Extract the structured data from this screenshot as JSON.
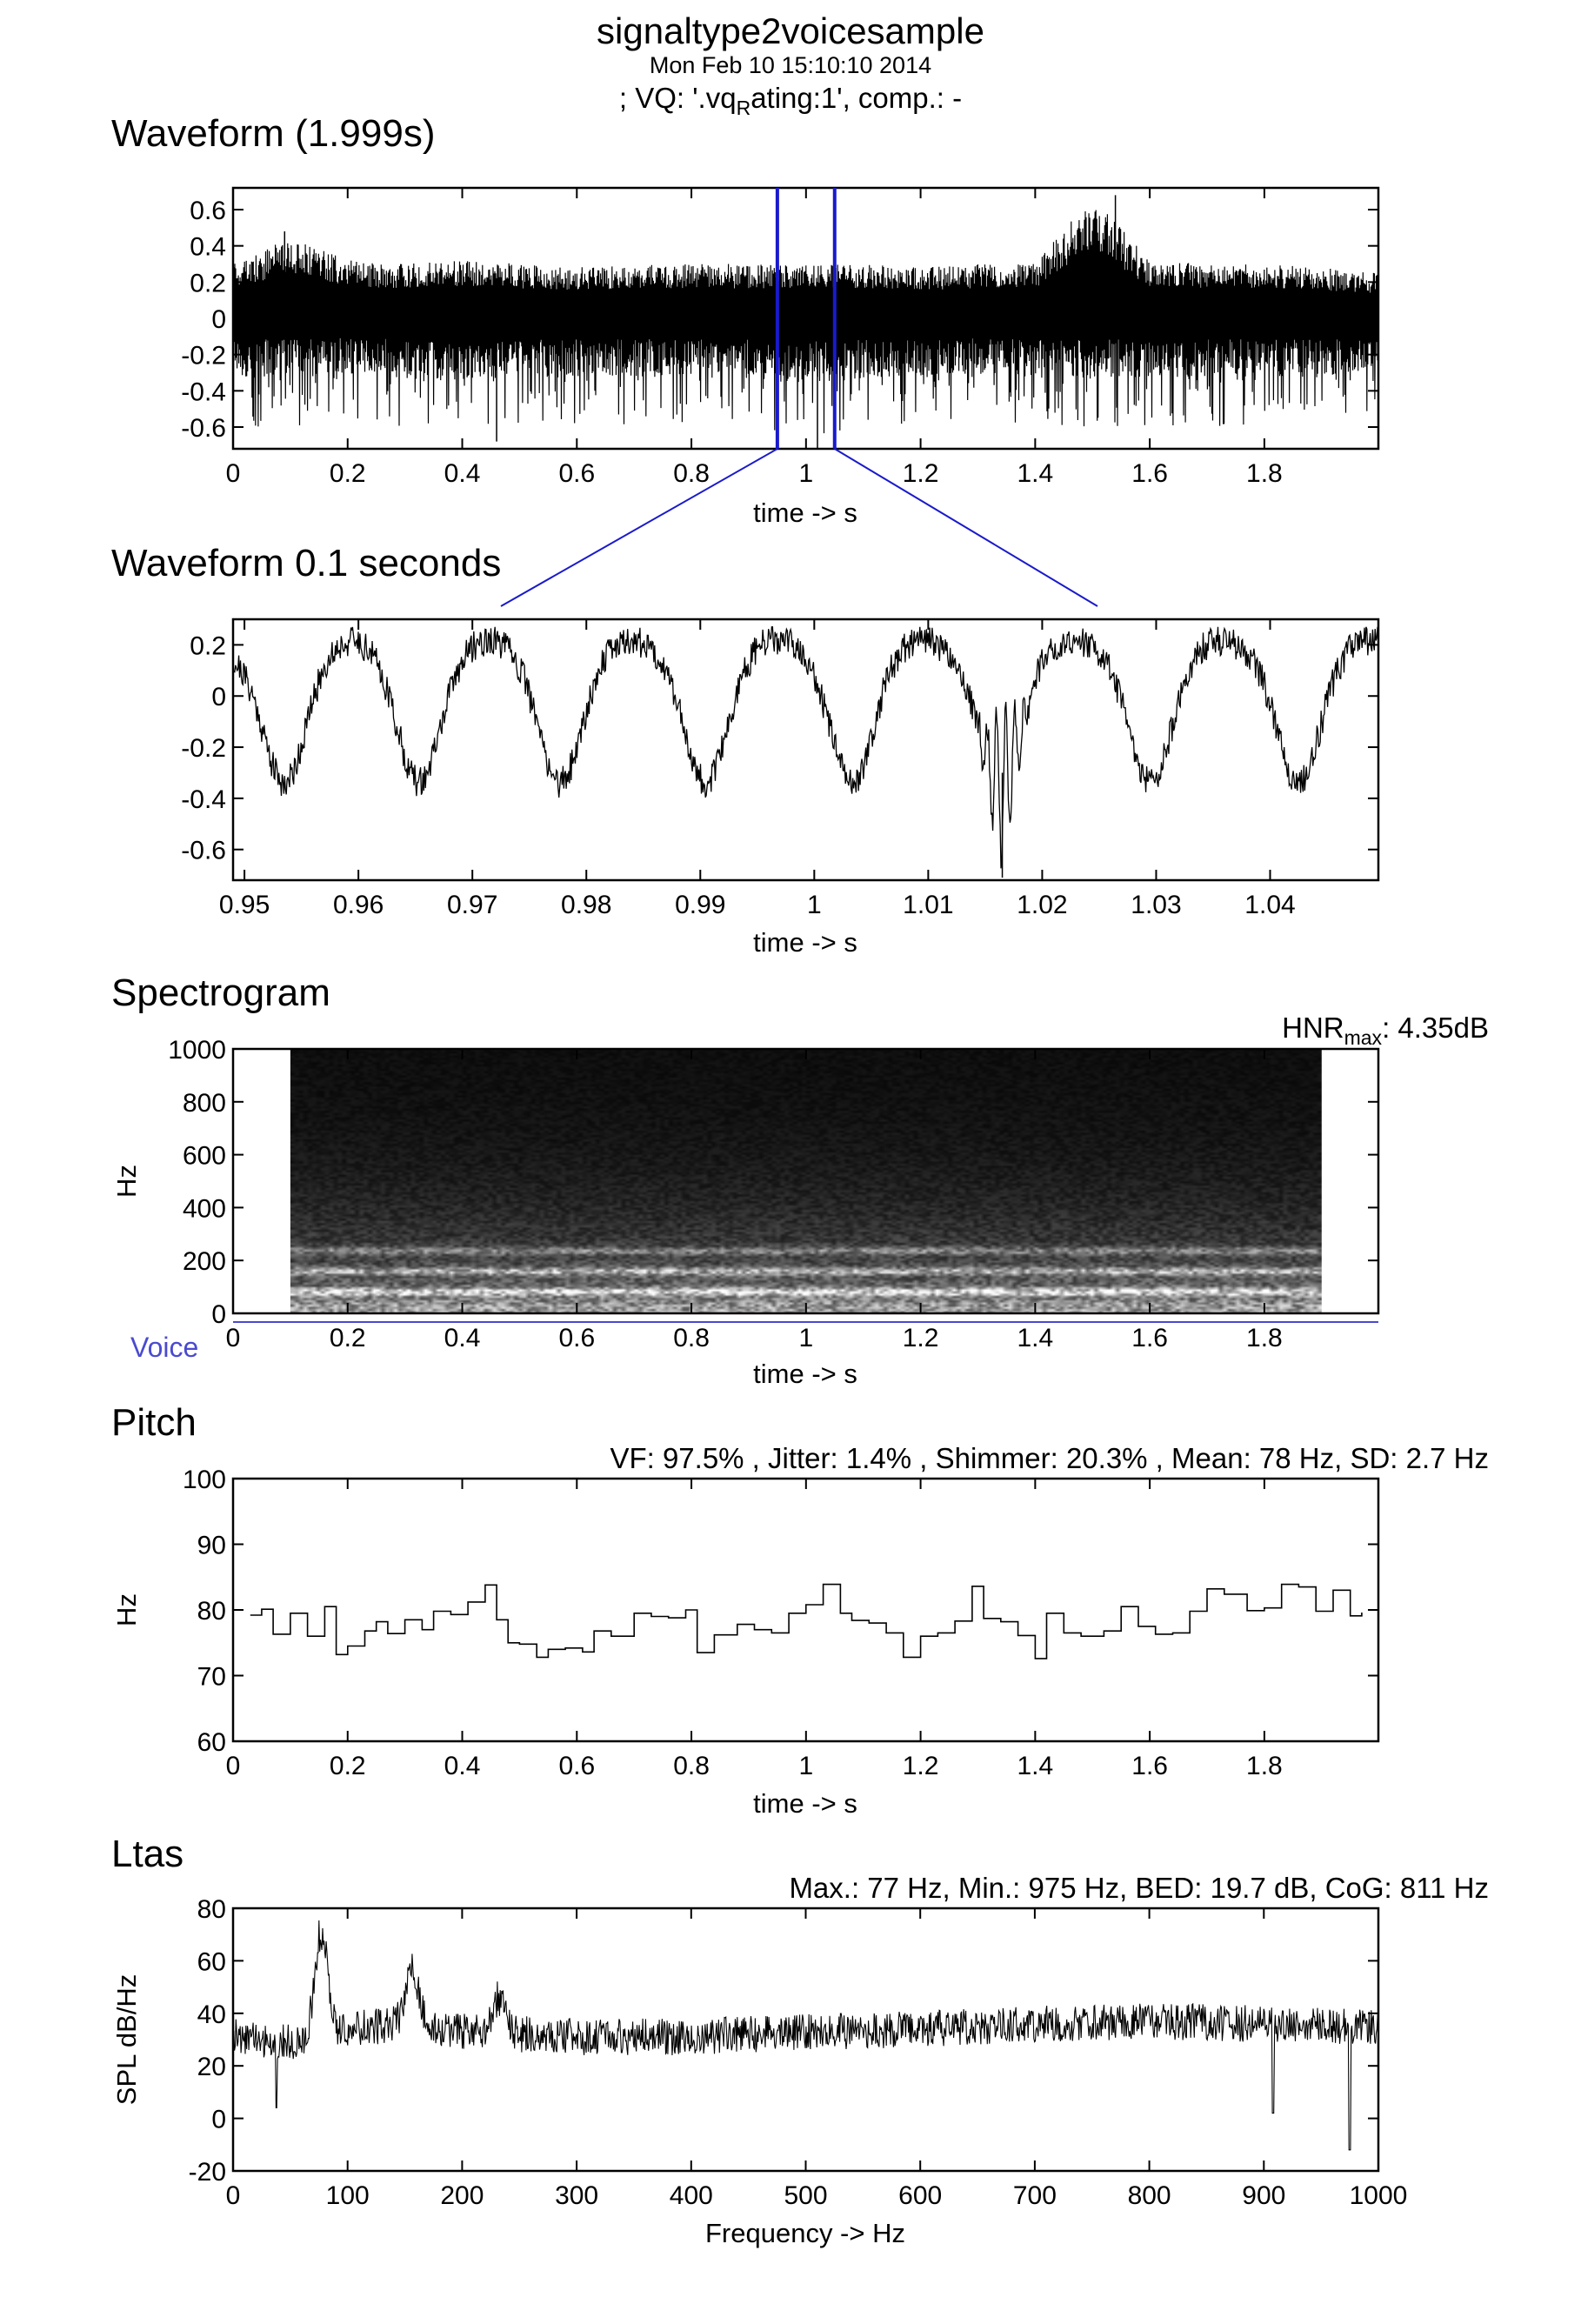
{
  "header": {
    "title": "signaltype2voicesample",
    "date": "Mon Feb 10 15:10:10 2014",
    "vq_prefix": "; VQ: '.vq",
    "vq_sub": "R",
    "vq_suffix": "ating:1', comp.: -"
  },
  "colors": {
    "selection": "#1a1acc",
    "voice": "#4a4ad0",
    "trace": "#000000"
  },
  "chart_data": [
    {
      "id": "waveform",
      "type": "line",
      "title": "Waveform (1.999s)",
      "xlabel": "time -> s",
      "ylabel": "",
      "xlim": [
        0,
        1.999
      ],
      "ylim": [
        -0.72,
        0.72
      ],
      "xticks": [
        0,
        0.2,
        0.4,
        0.6,
        0.8,
        1,
        1.2,
        1.4,
        1.6,
        1.8
      ],
      "xtick_labels": [
        "0",
        "0.2",
        "0.4",
        "0.6",
        "0.8",
        "1",
        "1.2",
        "1.4",
        "1.6",
        "1.8"
      ],
      "yticks": [
        0.6,
        0.4,
        0.2,
        0,
        -0.2,
        -0.4,
        -0.6
      ],
      "ytick_labels": [
        "0.6",
        "0.4",
        "0.2",
        "0",
        "-0.2",
        "-0.4",
        "-0.6"
      ],
      "selection": [
        0.95,
        1.05
      ],
      "envelope": {
        "t": [
          0,
          0.1,
          0.2,
          0.3,
          0.4,
          0.5,
          0.6,
          0.7,
          0.8,
          0.9,
          1.0,
          1.1,
          1.2,
          1.3,
          1.4,
          1.5,
          1.6,
          1.7,
          1.8,
          1.9,
          1.999
        ],
        "max": [
          0.3,
          0.45,
          0.32,
          0.3,
          0.32,
          0.3,
          0.28,
          0.3,
          0.3,
          0.3,
          0.3,
          0.3,
          0.28,
          0.3,
          0.3,
          0.68,
          0.32,
          0.3,
          0.3,
          0.28,
          0.25
        ],
        "min": [
          -0.6,
          -0.6,
          -0.55,
          -0.6,
          -0.65,
          -0.6,
          -0.6,
          -0.6,
          -0.58,
          -0.6,
          -0.65,
          -0.6,
          -0.6,
          -0.55,
          -0.6,
          -0.6,
          -0.6,
          -0.6,
          -0.58,
          -0.6,
          -0.5
        ]
      }
    },
    {
      "id": "waveform-zoom",
      "type": "line",
      "title": "Waveform 0.1 seconds",
      "xlabel": "time -> s",
      "ylabel": "",
      "xlim": [
        0.949,
        1.0495
      ],
      "ylim": [
        -0.72,
        0.3
      ],
      "xticks": [
        0.95,
        0.96,
        0.97,
        0.98,
        0.99,
        1.0,
        1.01,
        1.02,
        1.03,
        1.04
      ],
      "xtick_labels": [
        "0.95",
        "0.96",
        "0.97",
        "0.98",
        "0.99",
        "1",
        "1.01",
        "1.02",
        "1.03",
        "1.04"
      ],
      "yticks": [
        0.2,
        0,
        -0.2,
        -0.4,
        -0.6
      ],
      "ytick_labels": [
        "0.2",
        "0",
        "-0.2",
        "-0.4",
        "-0.6"
      ],
      "glottal_pulse_times": [
        0.9535,
        0.9653,
        0.9777,
        0.9905,
        1.0033,
        1.0163,
        1.0295,
        1.0425
      ],
      "deepest_trough": {
        "t": 1.0165,
        "y": -0.71
      },
      "peak_level": 0.22
    },
    {
      "id": "spectrogram",
      "type": "heatmap",
      "title": "Spectrogram",
      "annotation_prefix": "HNR",
      "annotation_sub": "max",
      "annotation_suffix": ": 4.35dB",
      "xlabel": "time -> s",
      "ylabel": "Hz",
      "xlim": [
        0,
        1.999
      ],
      "ylim": [
        0,
        1000
      ],
      "xticks": [
        0,
        0.2,
        0.4,
        0.6,
        0.8,
        1,
        1.2,
        1.4,
        1.6,
        1.8
      ],
      "xtick_labels": [
        "0",
        "0.2",
        "0.4",
        "0.6",
        "0.8",
        "1",
        "1.2",
        "1.4",
        "1.6",
        "1.8"
      ],
      "yticks": [
        1000,
        800,
        600,
        400,
        200,
        0
      ],
      "ytick_labels": [
        "1000",
        "800",
        "600",
        "400",
        "200",
        "0"
      ],
      "image_time_range": [
        0.1,
        1.9
      ],
      "harmonic_bands_hz": [
        78,
        156,
        234
      ],
      "voice_label": "Voice",
      "voiced_range": [
        0,
        1.999
      ]
    },
    {
      "id": "pitch",
      "type": "line",
      "title": "Pitch",
      "stats": "VF: 97.5% , Jitter: 1.4% , Shimmer: 20.3% , Mean: 78 Hz, SD: 2.7 Hz",
      "xlabel": "time -> s",
      "ylabel": "Hz",
      "xlim": [
        0,
        1.999
      ],
      "ylim": [
        60,
        100
      ],
      "xticks": [
        0,
        0.2,
        0.4,
        0.6,
        0.8,
        1,
        1.2,
        1.4,
        1.6,
        1.8
      ],
      "xtick_labels": [
        "0",
        "0.2",
        "0.4",
        "0.6",
        "0.8",
        "1",
        "1.2",
        "1.4",
        "1.6",
        "1.8"
      ],
      "yticks": [
        100,
        90,
        80,
        70,
        60
      ],
      "ytick_labels": [
        "100",
        "90",
        "80",
        "70",
        "60"
      ],
      "x": [
        0.03,
        0.05,
        0.07,
        0.1,
        0.13,
        0.16,
        0.18,
        0.2,
        0.23,
        0.25,
        0.27,
        0.3,
        0.33,
        0.35,
        0.38,
        0.41,
        0.44,
        0.46,
        0.48,
        0.5,
        0.53,
        0.55,
        0.58,
        0.61,
        0.63,
        0.66,
        0.7,
        0.73,
        0.76,
        0.79,
        0.81,
        0.84,
        0.88,
        0.91,
        0.94,
        0.97,
        1.0,
        1.03,
        1.06,
        1.08,
        1.11,
        1.14,
        1.17,
        1.2,
        1.23,
        1.26,
        1.29,
        1.31,
        1.34,
        1.37,
        1.4,
        1.42,
        1.45,
        1.48,
        1.52,
        1.55,
        1.58,
        1.61,
        1.64,
        1.67,
        1.7,
        1.73,
        1.77,
        1.8,
        1.83,
        1.86,
        1.89,
        1.92,
        1.95,
        1.97
      ],
      "y": [
        79.2,
        80.1,
        76.3,
        79.5,
        76.0,
        80.5,
        73.2,
        74.5,
        76.8,
        78.2,
        76.4,
        78.5,
        77.0,
        79.8,
        79.3,
        81.2,
        83.8,
        78.5,
        75.0,
        74.8,
        72.8,
        74.0,
        74.2,
        73.6,
        76.8,
        76.0,
        79.5,
        79.0,
        78.8,
        80.0,
        73.5,
        76.2,
        77.8,
        77.0,
        76.5,
        79.5,
        80.8,
        83.9,
        79.5,
        78.4,
        78.0,
        76.5,
        72.8,
        76.0,
        76.5,
        78.3,
        83.6,
        78.7,
        78.2,
        76.1,
        72.6,
        79.5,
        76.5,
        76.0,
        76.8,
        80.5,
        77.5,
        76.3,
        76.5,
        79.8,
        83.2,
        82.4,
        79.9,
        80.3,
        83.9,
        83.5,
        79.8,
        83.0,
        79.1,
        79.6
      ]
    },
    {
      "id": "ltas",
      "type": "line",
      "title": "Ltas",
      "stats": "Max.: 77 Hz, Min.: 975 Hz, BED: 19.7 dB, CoG: 811 Hz",
      "xlabel": "Frequency -> Hz",
      "ylabel": "SPL dB/Hz",
      "xlim": [
        0,
        1000
      ],
      "ylim": [
        -20,
        80
      ],
      "xticks": [
        0,
        100,
        200,
        300,
        400,
        500,
        600,
        700,
        800,
        900,
        1000
      ],
      "xtick_labels": [
        "0",
        "100",
        "200",
        "300",
        "400",
        "500",
        "600",
        "700",
        "800",
        "900",
        "1000"
      ],
      "yticks": [
        80,
        60,
        40,
        20,
        0,
        -20
      ],
      "ytick_labels": [
        "80",
        "60",
        "40",
        "20",
        "0",
        "-20"
      ],
      "baseline": {
        "f": [
          0,
          50,
          100,
          150,
          200,
          300,
          400,
          500,
          600,
          700,
          800,
          900,
          1000
        ],
        "db": [
          31,
          29,
          34,
          36,
          33,
          31,
          31,
          33,
          34,
          36,
          37,
          36,
          35
        ]
      },
      "peaks": [
        {
          "f": 77,
          "db": 71
        },
        {
          "f": 156,
          "db": 57
        },
        {
          "f": 232,
          "db": 46
        }
      ],
      "dips": [
        {
          "f": 38,
          "db": 4
        },
        {
          "f": 908,
          "db": 2
        },
        {
          "f": 975,
          "db": -12
        }
      ]
    }
  ]
}
